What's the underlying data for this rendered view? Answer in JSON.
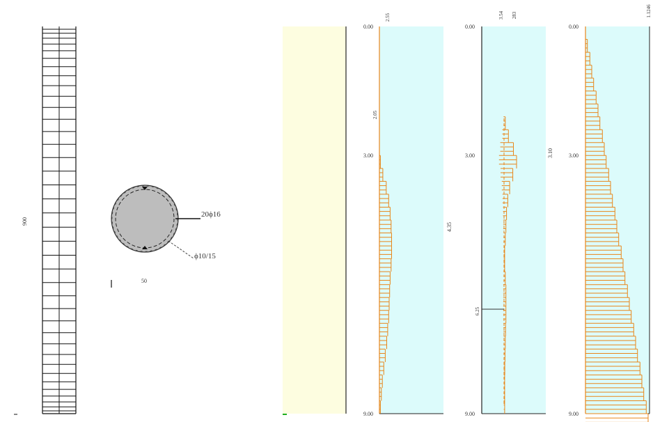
{
  "column_elevation": {
    "height_label": "900",
    "tie_count": 38
  },
  "cross_section": {
    "main_bars_label": "20ϕ16",
    "stirrups_label": "ϕ10/15",
    "diameter_label": "50"
  },
  "colors": {
    "panel_yellow": "#fdfde0",
    "panel_cyan": "#dcfbfb",
    "diagram_orange": "#e8861a",
    "outline": "#111111",
    "section_fill": "#bdbdbd",
    "marker_green": "#1fae1f"
  },
  "charts": {
    "panel1": {
      "top_elev": "0.00",
      "mid_elev": "3.00",
      "bot_elev": "9.00",
      "top_value": "2.55",
      "mid_value": "2.05",
      "side_value": "4.35"
    },
    "panel2": {
      "top_elev": "0.00",
      "mid_elev": "3.00",
      "bot_elev": "9.00",
      "top_value_a": "3.54",
      "top_value_b": "283",
      "low_value": "6.25",
      "side_value": "3.10"
    },
    "panel3": {
      "top_elev": "0.00",
      "mid_elev": "3.00",
      "bot_elev": "9.00",
      "top_value": "1.1246"
    }
  },
  "chart_data": [
    {
      "type": "bar",
      "title": "",
      "orientation": "horizontal",
      "y_range": [
        0,
        9
      ],
      "x": [
        3.0,
        3.3,
        3.6,
        3.9,
        4.2,
        4.5,
        4.8,
        5.1,
        5.4,
        5.7,
        6.0,
        6.3,
        6.6,
        6.9,
        7.2,
        7.5,
        7.8,
        8.1,
        8.4,
        8.7
      ],
      "values": [
        0.1,
        0.35,
        0.7,
        0.95,
        1.1,
        1.2,
        1.25,
        1.25,
        1.2,
        1.1,
        1.05,
        1.0,
        0.95,
        0.85,
        0.75,
        0.6,
        0.45,
        0.3,
        0.2,
        0.1
      ]
    },
    {
      "type": "bar",
      "title": "",
      "orientation": "horizontal",
      "y_range": [
        0,
        9
      ],
      "x": [
        2.1,
        2.4,
        2.7,
        3.0,
        3.3,
        3.6,
        3.9,
        4.2,
        4.5,
        4.8,
        5.1,
        5.4,
        5.7,
        6.0,
        6.3,
        6.6,
        6.9,
        7.2,
        7.5,
        7.8,
        8.1,
        8.4,
        8.7
      ],
      "values": [
        0.1,
        0.35,
        0.75,
        1.0,
        0.7,
        0.45,
        0.3,
        0.2,
        0.15,
        0.1,
        0.05,
        0.05,
        0.1,
        0.15,
        0.15,
        0.15,
        0.12,
        0.1,
        0.08,
        0.06,
        0.05,
        0.05,
        0.05
      ]
    },
    {
      "type": "bar",
      "title": "",
      "orientation": "horizontal",
      "y_range": [
        0,
        9
      ],
      "x": [
        0.0,
        0.3,
        0.6,
        0.9,
        1.2,
        1.5,
        1.8,
        2.1,
        2.4,
        2.7,
        3.0,
        3.3,
        3.6,
        3.9,
        4.2,
        4.5,
        4.8,
        5.1,
        5.4,
        5.7,
        6.0,
        6.3,
        6.6,
        6.9,
        7.2,
        7.5,
        7.8,
        8.1,
        8.4,
        8.7,
        9.0
      ],
      "values": [
        0.0,
        0.03,
        0.07,
        0.1,
        0.13,
        0.17,
        0.2,
        0.23,
        0.27,
        0.3,
        0.33,
        0.37,
        0.4,
        0.43,
        0.47,
        0.5,
        0.53,
        0.57,
        0.6,
        0.63,
        0.67,
        0.7,
        0.73,
        0.77,
        0.8,
        0.83,
        0.87,
        0.9,
        0.93,
        0.97,
        1.0
      ]
    }
  ]
}
